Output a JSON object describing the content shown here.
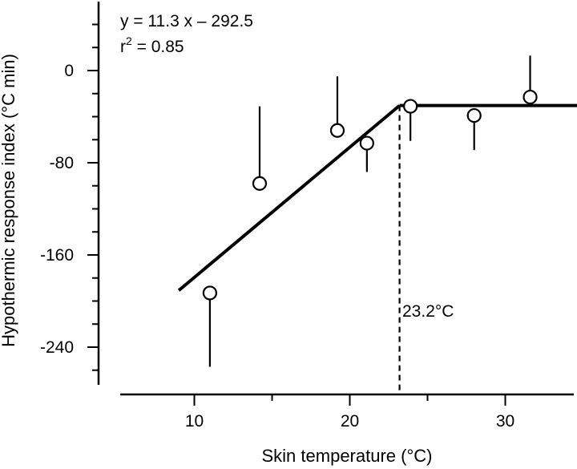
{
  "chart_data": {
    "type": "scatter",
    "xlabel": "Skin temperature (°C)",
    "ylabel": "Hypothermic response index (°C min)",
    "xlim": [
      5,
      35
    ],
    "ylim": [
      -270,
      55
    ],
    "x_ticks": [
      10,
      20,
      30
    ],
    "y_ticks": [
      0,
      -80,
      -160,
      -240
    ],
    "points": [
      {
        "x": 11.0,
        "y": -193,
        "err_lower": 64,
        "err_upper": 0
      },
      {
        "x": 14.2,
        "y": -98,
        "err_lower": 0,
        "err_upper": 67
      },
      {
        "x": 19.2,
        "y": -52,
        "err_lower": 0,
        "err_upper": 47
      },
      {
        "x": 21.1,
        "y": -63,
        "err_lower": 25,
        "err_upper": 0
      },
      {
        "x": 23.9,
        "y": -31,
        "err_lower": 30,
        "err_upper": 0
      },
      {
        "x": 28.0,
        "y": -39,
        "err_lower": 30,
        "err_upper": 0
      },
      {
        "x": 31.6,
        "y": -23,
        "err_lower": 0,
        "err_upper": 36
      }
    ],
    "fit": {
      "equation_line1": "y = 11.3 x – 292.5",
      "r2_prefix": "r",
      "r2_sup": "2",
      "r2_value": " = 0.85",
      "breakpoint": 23.2,
      "breakpoint_label": "23.2°C",
      "slope": 11.3,
      "intercept": -292.5,
      "x_start": 9,
      "x_end": 35
    }
  }
}
